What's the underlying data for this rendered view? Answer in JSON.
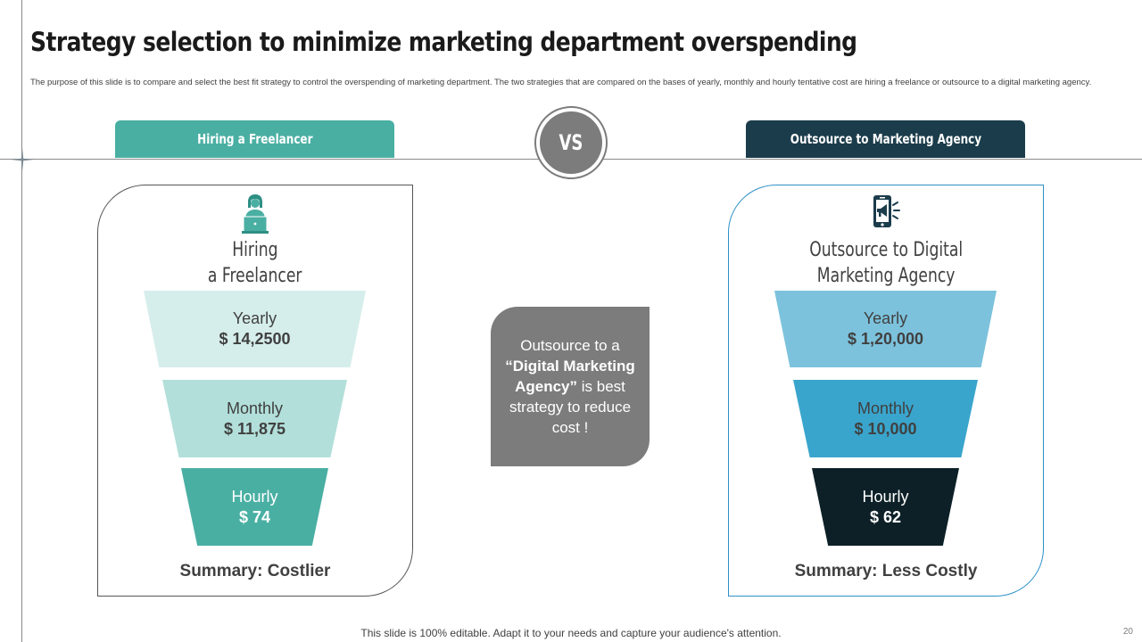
{
  "title": "Strategy selection to minimize marketing department overspending",
  "description": "The purpose of this slide is to compare and select the best fit strategy to control the overspending of marketing department. The two strategies that are compared on the bases of yearly, monthly and hourly tentative cost are hiring a freelance or outsource to a digital marketing agency.",
  "tabs": {
    "left": "Hiring a Freelancer",
    "right": "Outsource to Marketing Agency"
  },
  "vs_label": "VS",
  "left_panel": {
    "icon": "freelancer-laptop-icon",
    "heading_line1": "Hiring",
    "heading_line2": "a Freelancer",
    "tiers": [
      {
        "label": "Yearly",
        "value": "$ 14,2500"
      },
      {
        "label": "Monthly",
        "value": "$ 11,875"
      },
      {
        "label": "Hourly",
        "value": "$ 74"
      }
    ],
    "summary": "Summary: Costlier"
  },
  "right_panel": {
    "icon": "mobile-megaphone-icon",
    "heading_line1": "Outsource to Digital",
    "heading_line2": "Marketing Agency",
    "tiers": [
      {
        "label": "Yearly",
        "value": "$ 1,20,000"
      },
      {
        "label": "Monthly",
        "value": "$ 10,000"
      },
      {
        "label": "Hourly",
        "value": "$ 62"
      }
    ],
    "summary": "Summary: Less Costly"
  },
  "center_box": {
    "line1": "Outsource to a",
    "emphasis": "“Digital Marketing Agency”",
    "line2": "is best strategy to reduce cost !"
  },
  "footer": "This slide is 100% editable. Adapt it to your needs and capture your audience's attention.",
  "page_number": "20",
  "colors": {
    "teal": "#4aafa3",
    "teal_light": "#d6eeeb",
    "teal_mid": "#b2dfda",
    "navy": "#1b3c4b",
    "sky_light": "#7cc2dd",
    "sky_mid": "#3aa5cc",
    "ink": "#0d2027",
    "gray": "#7c7c7c"
  }
}
